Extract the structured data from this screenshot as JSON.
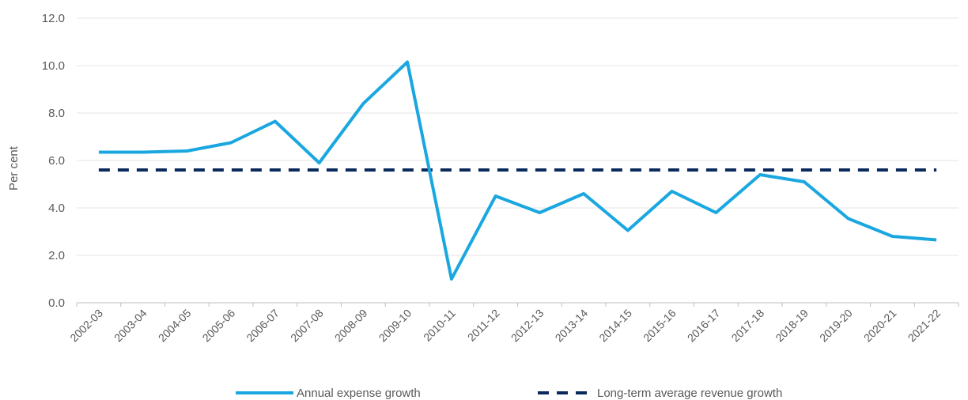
{
  "chart_data": {
    "type": "line",
    "title": "",
    "xlabel": "",
    "ylabel": "Per cent",
    "ylim": [
      0,
      12
    ],
    "y_ticks": [
      "0.0",
      "2.0",
      "4.0",
      "6.0",
      "8.0",
      "10.0",
      "12.0"
    ],
    "grid": true,
    "legend_position": "bottom",
    "categories": [
      "2002-03",
      "2003-04",
      "2004-05",
      "2005-06",
      "2006-07",
      "2007-08",
      "2008-09",
      "2009-10",
      "2010-11",
      "2011-12",
      "2012-13",
      "2013-14",
      "2014-15",
      "2015-16",
      "2016-17",
      "2017-18",
      "2018-19",
      "2019-20",
      "2020-21",
      "2021-22"
    ],
    "series": [
      {
        "name": "Annual expense growth",
        "color": "#1aa7e0",
        "style": "solid",
        "values": [
          6.35,
          6.35,
          6.4,
          6.75,
          7.65,
          5.9,
          8.4,
          10.15,
          1.0,
          4.5,
          3.8,
          4.6,
          3.05,
          4.7,
          3.8,
          5.4,
          5.1,
          3.55,
          2.8,
          2.65
        ]
      },
      {
        "name": "Long-term average revenue growth",
        "color": "#0b2a5c",
        "style": "dashed",
        "values": [
          5.6,
          5.6,
          5.6,
          5.6,
          5.6,
          5.6,
          5.6,
          5.6,
          5.6,
          5.6,
          5.6,
          5.6,
          5.6,
          5.6,
          5.6,
          5.6,
          5.6,
          5.6,
          5.6,
          5.6
        ]
      }
    ]
  }
}
